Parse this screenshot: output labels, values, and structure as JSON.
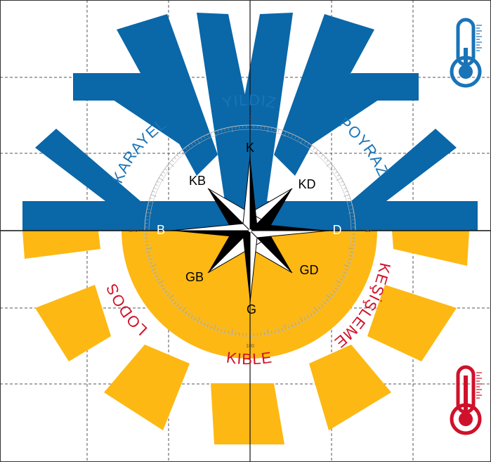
{
  "colors": {
    "cold_blue": "#0a67a8",
    "warm_yellow": "#fdb813",
    "wind_blue_text": "#1a74b8",
    "wind_red_text": "#d0112b",
    "thermo_cold": "#1a74b8",
    "thermo_hot": "#d0112b",
    "grid": "#555555"
  },
  "directions": {
    "north": "K",
    "northeast": "KD",
    "east": "D",
    "southeast": "GD",
    "south": "G",
    "southwest": "GB",
    "west": "B",
    "northwest": "KB"
  },
  "winds": {
    "north": "YILDIZ",
    "northeast": "POYRAZ",
    "northwest": "KARAYEL",
    "southwest": "LODOS",
    "south": "KIBLE",
    "southeast": "KEŞİŞLEME"
  },
  "degree_labels": {
    "d0": "0",
    "d90": "90",
    "d180": "180",
    "d270": "270"
  },
  "icons": {
    "top_right": "thermometer-cold-icon",
    "bottom_right": "thermometer-hot-icon",
    "top_shape": "snowflake-icon",
    "bottom_shape": "sun-icon"
  }
}
